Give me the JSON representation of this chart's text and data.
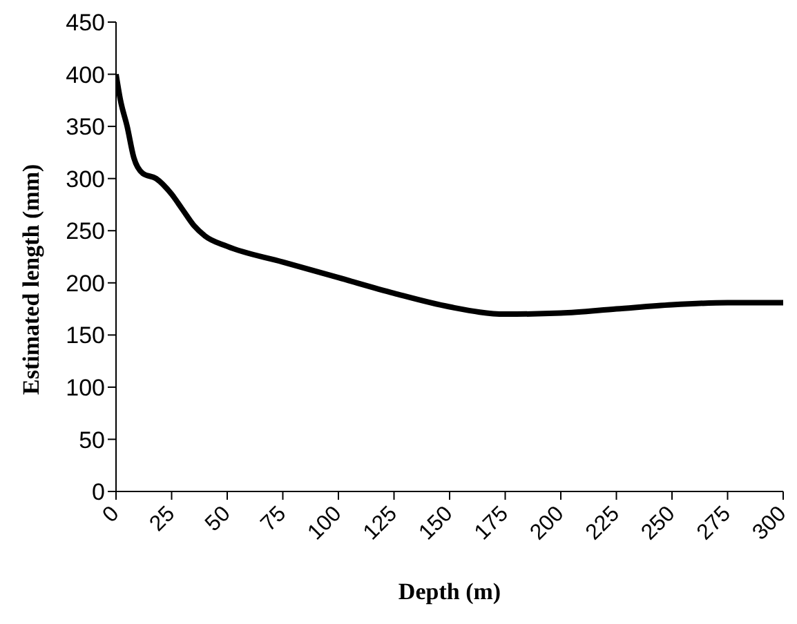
{
  "chart_data": {
    "type": "line",
    "xlabel": "Depth (m)",
    "ylabel": "Estimated length (mm)",
    "x": [
      0,
      2,
      5,
      8,
      12,
      18,
      25,
      30,
      35,
      40,
      50,
      75,
      100,
      125,
      150,
      175,
      200,
      225,
      250,
      275,
      300
    ],
    "series": [
      {
        "color": "#000000",
        "values": [
          400,
          375,
          350,
          320,
          305,
          300,
          285,
          270,
          255,
          245,
          235,
          220,
          205,
          190,
          177,
          170,
          171,
          175,
          179,
          181,
          181
        ]
      }
    ],
    "xlim": [
      0,
      300
    ],
    "xticks": [
      0,
      25,
      50,
      75,
      100,
      125,
      150,
      175,
      200,
      225,
      250,
      275,
      300
    ],
    "ylim": [
      0,
      450
    ],
    "yticks": [
      0,
      50,
      100,
      150,
      200,
      250,
      300,
      350,
      400,
      450
    ],
    "grid": false,
    "legend": false,
    "marker": "none",
    "line_style": "solid"
  }
}
